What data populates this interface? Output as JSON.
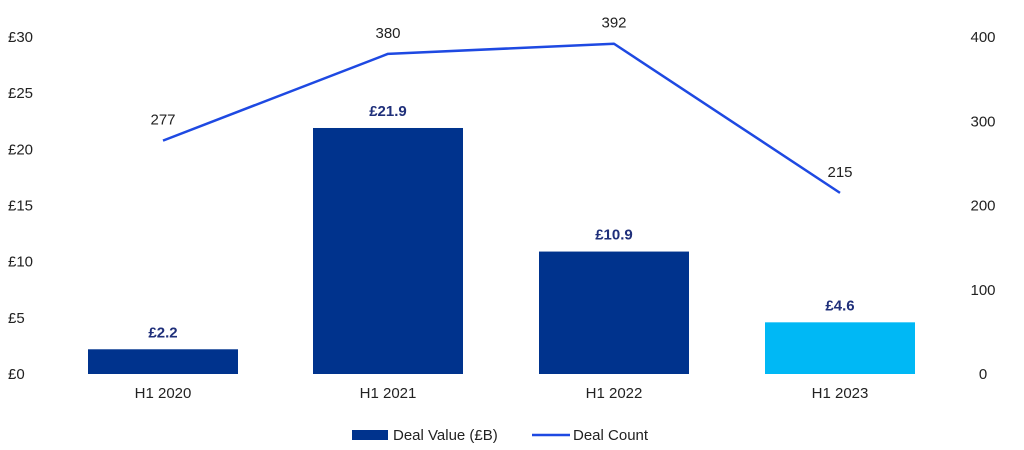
{
  "chart_data": {
    "type": "bar+line",
    "categories": [
      "H1 2020",
      "H1 2021",
      "H1 2022",
      "H1 2023"
    ],
    "series": [
      {
        "name": "Deal Value (£B)",
        "type": "bar",
        "axis": "left",
        "values": [
          2.2,
          21.9,
          10.9,
          4.6
        ],
        "value_labels": [
          "£2.2",
          "£21.9",
          "£10.9",
          "£4.6"
        ],
        "colors": [
          "#00338d",
          "#00338d",
          "#00338d",
          "#00b8f5"
        ]
      },
      {
        "name": "Deal Count",
        "type": "line",
        "axis": "right",
        "values": [
          277,
          380,
          392,
          215
        ],
        "value_labels": [
          "277",
          "380",
          "392",
          "215"
        ],
        "color": "#1e49e2"
      }
    ],
    "y_left": {
      "range": [
        0,
        30
      ],
      "ticks": [
        0,
        5,
        10,
        15,
        20,
        25,
        30
      ],
      "tick_labels": [
        "£0",
        "£5",
        "£10",
        "£15",
        "£20",
        "£25",
        "£30"
      ]
    },
    "y_right": {
      "range": [
        0,
        400
      ],
      "ticks": [
        0,
        100,
        200,
        300,
        400
      ],
      "tick_labels": [
        "0",
        "100",
        "200",
        "300",
        "400"
      ]
    },
    "bar_label_color": "#1f2f7a",
    "grid": false,
    "legend_position": "bottom-center"
  }
}
